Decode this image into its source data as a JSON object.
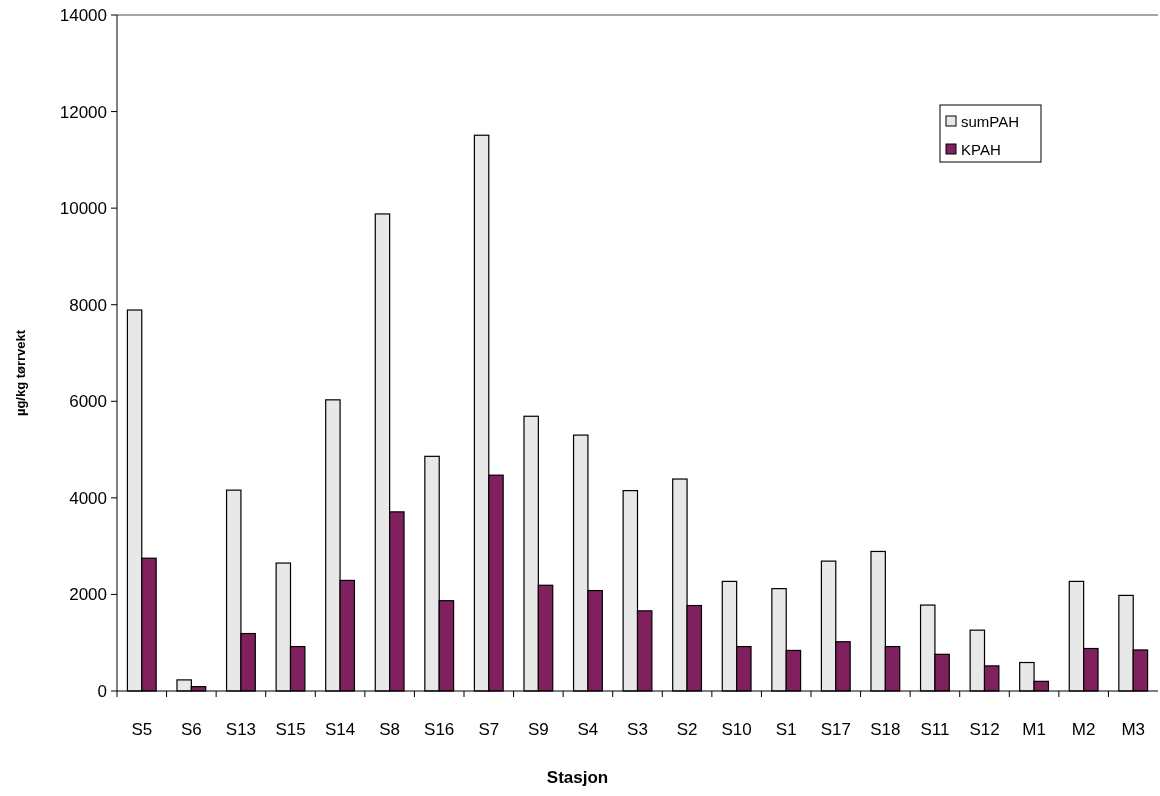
{
  "chart_data": {
    "type": "bar",
    "xlabel": "Stasjon",
    "ylabel": "µg/kg tørrvekt",
    "categories": [
      "S5",
      "S6",
      "S13",
      "S15",
      "S14",
      "S8",
      "S16",
      "S7",
      "S9",
      "S4",
      "S3",
      "S2",
      "S10",
      "S1",
      "S17",
      "S18",
      "S11",
      "S12",
      "M1",
      "M2",
      "M3"
    ],
    "series": [
      {
        "name": "sumPAH",
        "color": "#e8e8e8",
        "values": [
          7890,
          230,
          4160,
          2650,
          6030,
          9880,
          4860,
          11510,
          5690,
          5300,
          4150,
          4390,
          2270,
          2120,
          2690,
          2890,
          1780,
          1260,
          590,
          2270,
          1980
        ]
      },
      {
        "name": "KPAH",
        "color": "#80205f",
        "values": [
          2750,
          90,
          1190,
          920,
          2290,
          3710,
          1870,
          4470,
          2190,
          2080,
          1660,
          1770,
          920,
          840,
          1020,
          920,
          760,
          520,
          200,
          880,
          850
        ]
      }
    ],
    "ylim": [
      0,
      14000
    ],
    "yticks": [
      0,
      2000,
      4000,
      6000,
      8000,
      10000,
      12000,
      14000
    ],
    "grid": false,
    "legend": "top right"
  }
}
